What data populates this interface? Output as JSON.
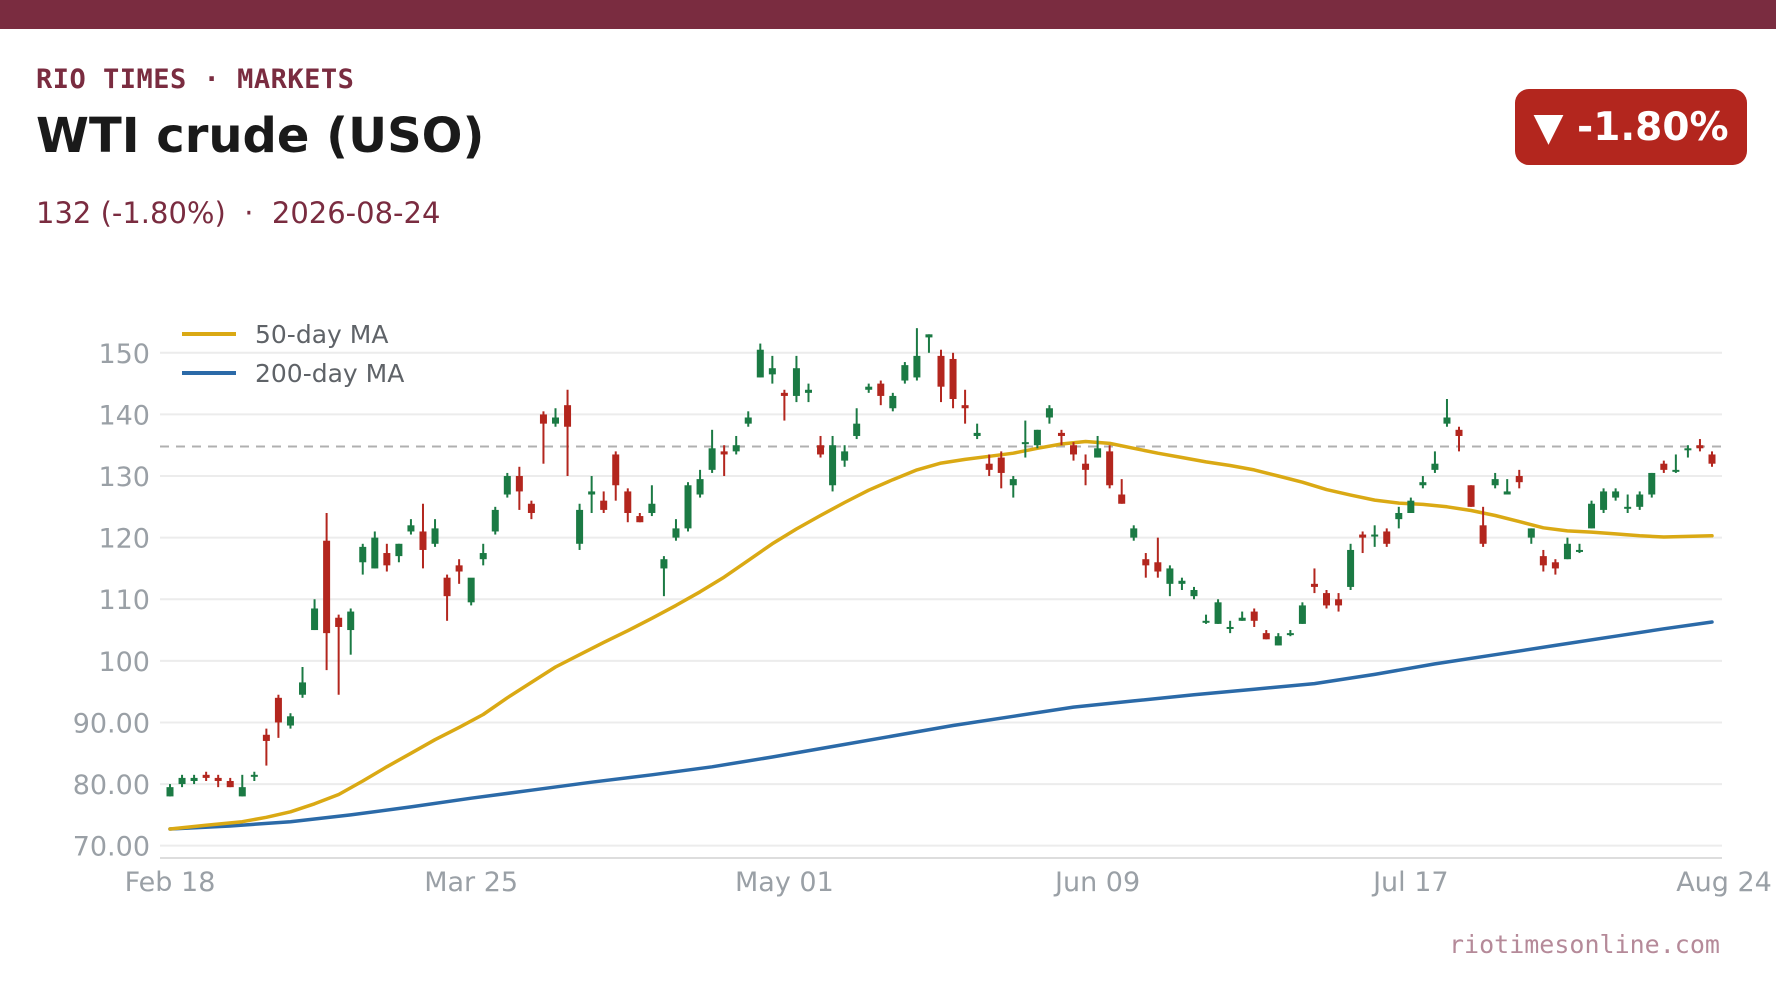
{
  "header": {
    "brand": "RIO TIMES · MARKETS",
    "title": "WTI crude (USO)",
    "subtitle": "132 (-1.80%)  ·  2026-08-24",
    "badge": "▼ -1.80%"
  },
  "footer": {
    "source": "riotimesonline.com"
  },
  "colors": {
    "brand": "#7a2c40",
    "up": "#1b7a44",
    "down": "#b3261e",
    "ma50": "#daa914",
    "ma200": "#2b6aa8",
    "reference": "#b0b0b0",
    "grid": "#ececec"
  },
  "chart_data": {
    "type": "candlestick",
    "ylim": [
      68,
      155
    ],
    "y_ticks": [
      "70.00",
      "80.00",
      "90.00",
      "100",
      "110",
      "120",
      "130",
      "140",
      "150"
    ],
    "y_tick_values": [
      70,
      80,
      90,
      100,
      110,
      120,
      130,
      140,
      150
    ],
    "x_tick_labels": [
      "Feb 18",
      "Mar 25",
      "May 01",
      "Jun 09",
      "Jul 17",
      "Aug 24"
    ],
    "x_tick_index": [
      0,
      25,
      51,
      77,
      103,
      129
    ],
    "reference_line": 134.8,
    "legend": {
      "position": "top-left",
      "items": [
        "50-day MA",
        "200-day MA"
      ]
    },
    "candles": [
      {
        "o": 78,
        "h": 80,
        "l": 78,
        "c": 79.5
      },
      {
        "o": 80,
        "h": 81.5,
        "l": 79.5,
        "c": 81
      },
      {
        "o": 80.5,
        "h": 81.5,
        "l": 80,
        "c": 81
      },
      {
        "o": 81.5,
        "h": 82,
        "l": 80.5,
        "c": 81
      },
      {
        "o": 81,
        "h": 81.5,
        "l": 79.5,
        "c": 80.5
      },
      {
        "o": 80.5,
        "h": 81,
        "l": 79.5,
        "c": 79.5
      },
      {
        "o": 78,
        "h": 81.5,
        "l": 78,
        "c": 79.5
      },
      {
        "o": 81.5,
        "h": 82,
        "l": 80.5,
        "c": 81.5
      },
      {
        "o": 88,
        "h": 89,
        "l": 83,
        "c": 87
      },
      {
        "o": 94,
        "h": 94.5,
        "l": 87.5,
        "c": 90
      },
      {
        "o": 89.5,
        "h": 91.5,
        "l": 89,
        "c": 91
      },
      {
        "o": 94.5,
        "h": 99,
        "l": 94,
        "c": 96.5
      },
      {
        "o": 105,
        "h": 110,
        "l": 105,
        "c": 108.5
      },
      {
        "o": 119.5,
        "h": 124,
        "l": 98.5,
        "c": 104.5
      },
      {
        "o": 107,
        "h": 107.5,
        "l": 94.5,
        "c": 105.5
      },
      {
        "o": 105,
        "h": 108.5,
        "l": 101,
        "c": 108
      },
      {
        "o": 116,
        "h": 119,
        "l": 114,
        "c": 118.5
      },
      {
        "o": 115,
        "h": 121,
        "l": 115,
        "c": 120
      },
      {
        "o": 117.5,
        "h": 119,
        "l": 114.5,
        "c": 115.5
      },
      {
        "o": 117,
        "h": 119,
        "l": 116,
        "c": 119
      },
      {
        "o": 121,
        "h": 123,
        "l": 120.5,
        "c": 122
      },
      {
        "o": 121,
        "h": 125.5,
        "l": 115,
        "c": 118
      },
      {
        "o": 119,
        "h": 123,
        "l": 118.5,
        "c": 121.5
      },
      {
        "o": 113.5,
        "h": 114,
        "l": 106.5,
        "c": 110.5
      },
      {
        "o": 115.5,
        "h": 116.5,
        "l": 112.5,
        "c": 114.5
      },
      {
        "o": 109.5,
        "h": 113,
        "l": 109,
        "c": 113.5
      },
      {
        "o": 116.5,
        "h": 119,
        "l": 115.5,
        "c": 117.5
      },
      {
        "o": 121,
        "h": 125,
        "l": 120.5,
        "c": 124.5
      },
      {
        "o": 127,
        "h": 130.5,
        "l": 126.5,
        "c": 130
      },
      {
        "o": 130,
        "h": 131.5,
        "l": 124.5,
        "c": 127.5
      },
      {
        "o": 125.5,
        "h": 126,
        "l": 123,
        "c": 124
      },
      {
        "o": 140,
        "h": 140.5,
        "l": 132,
        "c": 138.5
      },
      {
        "o": 138.5,
        "h": 141,
        "l": 138,
        "c": 139.5
      },
      {
        "o": 141.5,
        "h": 144,
        "l": 130,
        "c": 138
      },
      {
        "o": 119,
        "h": 125.5,
        "l": 118,
        "c": 124.5
      },
      {
        "o": 127,
        "h": 130,
        "l": 124,
        "c": 127.5
      },
      {
        "o": 126,
        "h": 127.5,
        "l": 124,
        "c": 124.5
      },
      {
        "o": 133.5,
        "h": 134,
        "l": 126,
        "c": 128.5
      },
      {
        "o": 127.5,
        "h": 128,
        "l": 122.5,
        "c": 124
      },
      {
        "o": 123.5,
        "h": 124,
        "l": 122.5,
        "c": 122.5
      },
      {
        "o": 124,
        "h": 128.5,
        "l": 123.5,
        "c": 125.5
      },
      {
        "o": 115,
        "h": 117,
        "l": 110.5,
        "c": 116.5
      },
      {
        "o": 120,
        "h": 123,
        "l": 119.5,
        "c": 121.5
      },
      {
        "o": 121.5,
        "h": 129,
        "l": 121,
        "c": 128.5
      },
      {
        "o": 127,
        "h": 131,
        "l": 126.5,
        "c": 129.5
      },
      {
        "o": 131,
        "h": 137.5,
        "l": 130.5,
        "c": 134.5
      },
      {
        "o": 134,
        "h": 135,
        "l": 130,
        "c": 133.5
      },
      {
        "o": 134,
        "h": 136.5,
        "l": 133.5,
        "c": 135
      },
      {
        "o": 138.5,
        "h": 140.5,
        "l": 138,
        "c": 139.5
      },
      {
        "o": 146,
        "h": 151.5,
        "l": 146,
        "c": 150.5
      },
      {
        "o": 146.5,
        "h": 149.5,
        "l": 145,
        "c": 147.5
      },
      {
        "o": 143.5,
        "h": 144,
        "l": 139,
        "c": 143
      },
      {
        "o": 143,
        "h": 149.5,
        "l": 142,
        "c": 147.5
      },
      {
        "o": 143.5,
        "h": 145,
        "l": 142,
        "c": 144
      },
      {
        "o": 135,
        "h": 136.5,
        "l": 133,
        "c": 133.5
      },
      {
        "o": 128.5,
        "h": 136.5,
        "l": 127.5,
        "c": 135
      },
      {
        "o": 132.5,
        "h": 135,
        "l": 131.5,
        "c": 134
      },
      {
        "o": 136.5,
        "h": 141,
        "l": 136,
        "c": 138.5
      },
      {
        "o": 144,
        "h": 145,
        "l": 143.5,
        "c": 144.5
      },
      {
        "o": 145,
        "h": 145.5,
        "l": 141.5,
        "c": 143
      },
      {
        "o": 141,
        "h": 143.5,
        "l": 140.5,
        "c": 143
      },
      {
        "o": 145.5,
        "h": 148.5,
        "l": 145,
        "c": 148
      },
      {
        "o": 146,
        "h": 154,
        "l": 145.5,
        "c": 149.5
      },
      {
        "o": 152.5,
        "h": 153,
        "l": 150,
        "c": 153
      },
      {
        "o": 149.5,
        "h": 150.5,
        "l": 142,
        "c": 144.5
      },
      {
        "o": 149,
        "h": 150,
        "l": 141,
        "c": 142.5
      },
      {
        "o": 141.5,
        "h": 144,
        "l": 138.5,
        "c": 141
      },
      {
        "o": 136.5,
        "h": 138.5,
        "l": 136,
        "c": 137
      },
      {
        "o": 132,
        "h": 133.5,
        "l": 130,
        "c": 131
      },
      {
        "o": 133,
        "h": 134,
        "l": 128,
        "c": 130.5
      },
      {
        "o": 128.5,
        "h": 130,
        "l": 126.5,
        "c": 129.5
      },
      {
        "o": 135.5,
        "h": 139,
        "l": 133,
        "c": 135.5
      },
      {
        "o": 135,
        "h": 137.5,
        "l": 134.5,
        "c": 137.5
      },
      {
        "o": 139.5,
        "h": 141.5,
        "l": 138.5,
        "c": 141
      },
      {
        "o": 137,
        "h": 137.5,
        "l": 135,
        "c": 136.5
      },
      {
        "o": 135,
        "h": 135.5,
        "l": 132.5,
        "c": 133.5
      },
      {
        "o": 132,
        "h": 133.5,
        "l": 128.5,
        "c": 131
      },
      {
        "o": 133,
        "h": 136.5,
        "l": 133,
        "c": 134.5
      },
      {
        "o": 134,
        "h": 135,
        "l": 128,
        "c": 128.5
      },
      {
        "o": 127,
        "h": 129.5,
        "l": 125.5,
        "c": 125.5
      },
      {
        "o": 120,
        "h": 122,
        "l": 119.5,
        "c": 121.5
      },
      {
        "o": 116.5,
        "h": 117.5,
        "l": 113.5,
        "c": 115.5
      },
      {
        "o": 116,
        "h": 120,
        "l": 113.5,
        "c": 114.5
      },
      {
        "o": 112.5,
        "h": 115.5,
        "l": 110.5,
        "c": 115
      },
      {
        "o": 112.5,
        "h": 113.5,
        "l": 111.5,
        "c": 113
      },
      {
        "o": 110.5,
        "h": 112,
        "l": 110,
        "c": 111.5
      },
      {
        "o": 106.5,
        "h": 107.5,
        "l": 106,
        "c": 106.5
      },
      {
        "o": 106,
        "h": 110,
        "l": 106,
        "c": 109.5
      },
      {
        "o": 105.5,
        "h": 106.5,
        "l": 104.5,
        "c": 105.5
      },
      {
        "o": 106.5,
        "h": 108,
        "l": 106.5,
        "c": 107
      },
      {
        "o": 108,
        "h": 108.5,
        "l": 105.5,
        "c": 106.5
      },
      {
        "o": 104.5,
        "h": 105,
        "l": 103.5,
        "c": 103.5
      },
      {
        "o": 102.5,
        "h": 104.5,
        "l": 102.5,
        "c": 104
      },
      {
        "o": 104.5,
        "h": 105,
        "l": 104,
        "c": 104.5
      },
      {
        "o": 106,
        "h": 109.5,
        "l": 106,
        "c": 109
      },
      {
        "o": 112.5,
        "h": 115,
        "l": 111,
        "c": 112
      },
      {
        "o": 111,
        "h": 111.5,
        "l": 108.5,
        "c": 109
      },
      {
        "o": 110,
        "h": 111,
        "l": 108,
        "c": 109
      },
      {
        "o": 112,
        "h": 119,
        "l": 111.5,
        "c": 118
      },
      {
        "o": 120.5,
        "h": 121,
        "l": 117.5,
        "c": 120
      },
      {
        "o": 120.5,
        "h": 122,
        "l": 118.5,
        "c": 120.5
      },
      {
        "o": 121,
        "h": 121.5,
        "l": 118.5,
        "c": 119
      },
      {
        "o": 123,
        "h": 125,
        "l": 121.5,
        "c": 124
      },
      {
        "o": 124,
        "h": 126.5,
        "l": 124,
        "c": 126
      },
      {
        "o": 128.5,
        "h": 130,
        "l": 128,
        "c": 129
      },
      {
        "o": 131,
        "h": 134,
        "l": 130.5,
        "c": 132
      },
      {
        "o": 138.5,
        "h": 142.5,
        "l": 138,
        "c": 139.5
      },
      {
        "o": 137.5,
        "h": 138,
        "l": 134,
        "c": 136.5
      },
      {
        "o": 128.5,
        "h": 128.5,
        "l": 125,
        "c": 125
      },
      {
        "o": 122,
        "h": 125,
        "l": 118.5,
        "c": 119
      },
      {
        "o": 128.5,
        "h": 130.5,
        "l": 128,
        "c": 129.5
      },
      {
        "o": 127,
        "h": 129.5,
        "l": 127,
        "c": 127.5
      },
      {
        "o": 130,
        "h": 131,
        "l": 128,
        "c": 129
      },
      {
        "o": 120,
        "h": 121.5,
        "l": 119,
        "c": 121.5
      },
      {
        "o": 117,
        "h": 118,
        "l": 114.5,
        "c": 115.5
      },
      {
        "o": 116,
        "h": 116.5,
        "l": 114,
        "c": 115
      },
      {
        "o": 116.5,
        "h": 120,
        "l": 116.5,
        "c": 119
      },
      {
        "o": 118,
        "h": 119,
        "l": 117.5,
        "c": 118
      },
      {
        "o": 121.5,
        "h": 126,
        "l": 121.5,
        "c": 125.5
      },
      {
        "o": 124.5,
        "h": 128,
        "l": 124,
        "c": 127.5
      },
      {
        "o": 126.5,
        "h": 128,
        "l": 126,
        "c": 127.5
      },
      {
        "o": 125,
        "h": 127,
        "l": 124,
        "c": 125
      },
      {
        "o": 125,
        "h": 127.5,
        "l": 124.5,
        "c": 127
      },
      {
        "o": 127,
        "h": 130.5,
        "l": 126.5,
        "c": 130.5
      },
      {
        "o": 132,
        "h": 132.5,
        "l": 130.5,
        "c": 131
      },
      {
        "o": 131,
        "h": 133.5,
        "l": 130.5,
        "c": 131
      },
      {
        "o": 134.5,
        "h": 135,
        "l": 133,
        "c": 134.5
      },
      {
        "o": 135,
        "h": 136,
        "l": 134,
        "c": 134.5
      },
      {
        "o": 133.5,
        "h": 134,
        "l": 131.5,
        "c": 132
      }
    ],
    "series": [
      {
        "name": "50-day MA",
        "points": [
          [
            0,
            72.7
          ],
          [
            3,
            73.3
          ],
          [
            6,
            73.9
          ],
          [
            8,
            74.6
          ],
          [
            10,
            75.5
          ],
          [
            12,
            76.8
          ],
          [
            14,
            78.3
          ],
          [
            16,
            80.5
          ],
          [
            18,
            82.8
          ],
          [
            20,
            85.0
          ],
          [
            22,
            87.2
          ],
          [
            24,
            89.2
          ],
          [
            26,
            91.3
          ],
          [
            28,
            94.0
          ],
          [
            30,
            96.5
          ],
          [
            32,
            99.0
          ],
          [
            34,
            101.0
          ],
          [
            36,
            103.0
          ],
          [
            38,
            104.9
          ],
          [
            40,
            106.9
          ],
          [
            42,
            109.0
          ],
          [
            44,
            111.2
          ],
          [
            46,
            113.6
          ],
          [
            48,
            116.3
          ],
          [
            50,
            119.0
          ],
          [
            52,
            121.4
          ],
          [
            54,
            123.6
          ],
          [
            56,
            125.7
          ],
          [
            58,
            127.7
          ],
          [
            60,
            129.4
          ],
          [
            62,
            131.0
          ],
          [
            64,
            132.1
          ],
          [
            66,
            132.7
          ],
          [
            68,
            133.2
          ],
          [
            70,
            133.7
          ],
          [
            72,
            134.5
          ],
          [
            74,
            135.2
          ],
          [
            76,
            135.6
          ],
          [
            78,
            135.3
          ],
          [
            80,
            134.5
          ],
          [
            82,
            133.7
          ],
          [
            84,
            133.0
          ],
          [
            86,
            132.3
          ],
          [
            88,
            131.7
          ],
          [
            90,
            131.0
          ],
          [
            92,
            130.0
          ],
          [
            94,
            129.0
          ],
          [
            96,
            127.8
          ],
          [
            98,
            126.9
          ],
          [
            100,
            126.1
          ],
          [
            102,
            125.6
          ],
          [
            104,
            125.4
          ],
          [
            106,
            125.0
          ],
          [
            108,
            124.4
          ],
          [
            110,
            123.6
          ],
          [
            112,
            122.6
          ],
          [
            114,
            121.6
          ],
          [
            116,
            121.1
          ],
          [
            118,
            120.9
          ],
          [
            120,
            120.6
          ],
          [
            122,
            120.3
          ],
          [
            124,
            120.1
          ],
          [
            126,
            120.2
          ],
          [
            128,
            120.3
          ]
        ]
      },
      {
        "name": "200-day MA",
        "points": [
          [
            0,
            72.7
          ],
          [
            5,
            73.2
          ],
          [
            10,
            73.9
          ],
          [
            15,
            75.0
          ],
          [
            20,
            76.3
          ],
          [
            25,
            77.7
          ],
          [
            30,
            79.0
          ],
          [
            35,
            80.3
          ],
          [
            40,
            81.5
          ],
          [
            45,
            82.8
          ],
          [
            50,
            84.4
          ],
          [
            55,
            86.1
          ],
          [
            60,
            87.8
          ],
          [
            65,
            89.5
          ],
          [
            70,
            91.0
          ],
          [
            75,
            92.5
          ],
          [
            80,
            93.5
          ],
          [
            85,
            94.5
          ],
          [
            90,
            95.4
          ],
          [
            95,
            96.3
          ],
          [
            100,
            97.8
          ],
          [
            105,
            99.5
          ],
          [
            110,
            101.0
          ],
          [
            115,
            102.5
          ],
          [
            120,
            104.0
          ],
          [
            124,
            105.2
          ],
          [
            128,
            106.3
          ]
        ]
      }
    ]
  }
}
